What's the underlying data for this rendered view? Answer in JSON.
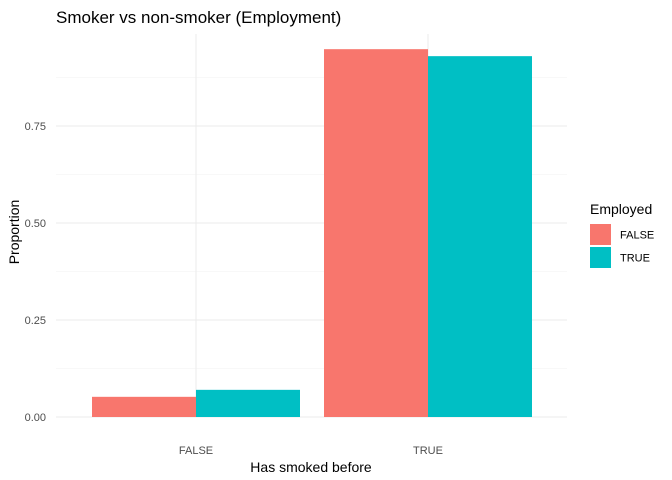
{
  "chart_data": {
    "type": "bar",
    "title": "Smoker vs non-smoker (Employment)",
    "xlabel": "Has smoked before",
    "ylabel": "Proportion",
    "categories": [
      "FALSE",
      "TRUE"
    ],
    "series": [
      {
        "name": "FALSE",
        "values": [
          0.052,
          0.948
        ],
        "color": "#F8766D"
      },
      {
        "name": "TRUE",
        "values": [
          0.07,
          0.93
        ],
        "color": "#00BFC4"
      }
    ],
    "ylim": [
      0,
      1
    ],
    "y_ticks": [
      0,
      0.25,
      0.5,
      0.75
    ],
    "y_tick_labels": [
      "0.00",
      "0.25",
      "0.50",
      "0.75"
    ],
    "grid": true,
    "legend": {
      "title": "Employed",
      "position": "right",
      "items": [
        "FALSE",
        "TRUE"
      ]
    }
  }
}
